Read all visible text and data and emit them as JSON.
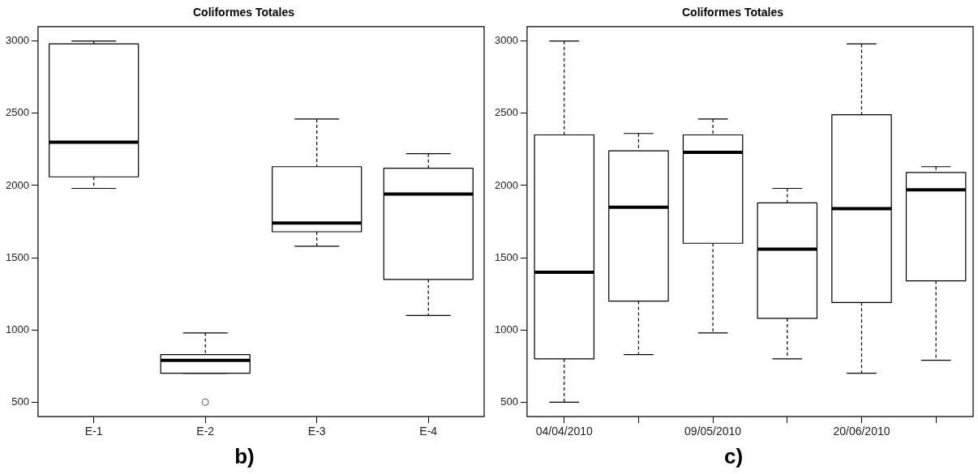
{
  "chart_data": [
    {
      "type": "box",
      "title": "Coliformes Totales",
      "categories": [
        "E-1",
        "E-2",
        "E-3",
        "E-4"
      ],
      "boxes": [
        {
          "low": 1980,
          "q1": 2060,
          "median": 2300,
          "q3": 2980,
          "high": 3000
        },
        {
          "low": 700,
          "q1": 700,
          "median": 790,
          "q3": 830,
          "high": 980,
          "outliers": [
            500
          ]
        },
        {
          "low": 1580,
          "q1": 1680,
          "median": 1740,
          "q3": 2130,
          "high": 2460
        },
        {
          "low": 1100,
          "q1": 1350,
          "median": 1940,
          "q3": 2120,
          "high": 2220
        }
      ],
      "ylim": [
        400,
        3100
      ],
      "yticks": [
        500,
        1000,
        1500,
        2000,
        2500,
        3000
      ],
      "annotations": [
        "b)"
      ]
    },
    {
      "type": "box",
      "title": "Coliformes Totales",
      "categories": [
        "04/04/2010",
        null,
        "09/05/2010",
        null,
        "20/06/2010",
        null
      ],
      "boxes": [
        {
          "low": 500,
          "q1": 800,
          "median": 1400,
          "q3": 2350,
          "high": 3000
        },
        {
          "low": 830,
          "q1": 1200,
          "median": 1850,
          "q3": 2240,
          "high": 2360
        },
        {
          "low": 980,
          "q1": 1600,
          "median": 2230,
          "q3": 2350,
          "high": 2460
        },
        {
          "low": 800,
          "q1": 1080,
          "median": 1560,
          "q3": 1880,
          "high": 1980
        },
        {
          "low": 700,
          "q1": 1190,
          "median": 1840,
          "q3": 2490,
          "high": 2980
        },
        {
          "low": 790,
          "q1": 1340,
          "median": 1970,
          "q3": 2090,
          "high": 2130
        }
      ],
      "ylim": [
        400,
        3100
      ],
      "yticks": [
        500,
        1000,
        1500,
        2000,
        2500,
        3000
      ],
      "annotations": [
        "c)"
      ]
    }
  ]
}
